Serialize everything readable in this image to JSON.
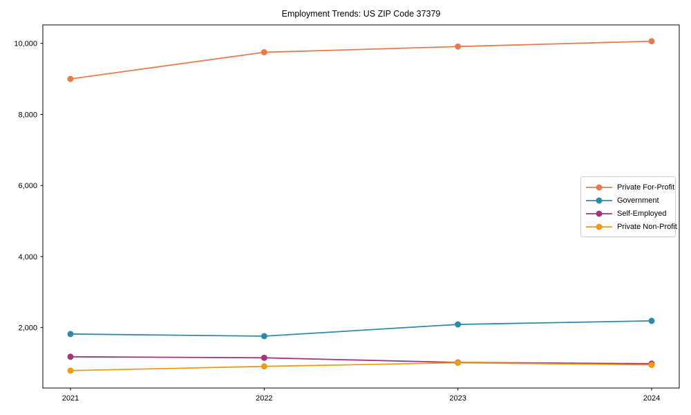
{
  "chart_data": {
    "type": "line",
    "title": "Employment Trends: US ZIP Code 37379",
    "xlabel": "",
    "ylabel": "",
    "x_categories": [
      "2021",
      "2022",
      "2023",
      "2024"
    ],
    "series": [
      {
        "name": "Private For-Profit",
        "color": "#E87B4C",
        "values": [
          9000,
          9750,
          9910,
          10060
        ]
      },
      {
        "name": "Government",
        "color": "#2E8BA8",
        "values": [
          1820,
          1760,
          2090,
          2190
        ]
      },
      {
        "name": "Self-Employed",
        "color": "#A43578",
        "values": [
          1180,
          1150,
          1020,
          985
        ]
      },
      {
        "name": "Private Non-Profit",
        "color": "#F09A10",
        "values": [
          790,
          910,
          1010,
          950
        ]
      }
    ],
    "yticks": [
      {
        "value": 2000,
        "label": "2,000"
      },
      {
        "value": 4000,
        "label": "4,000"
      },
      {
        "value": 6000,
        "label": "6,000"
      },
      {
        "value": 8000,
        "label": "8,000"
      },
      {
        "value": 10000,
        "label": "10,000"
      }
    ],
    "ylim": [
      300,
      10520
    ],
    "grid": false,
    "legend_position": "center-right",
    "marker": "circle",
    "axis_color": "#000000"
  }
}
